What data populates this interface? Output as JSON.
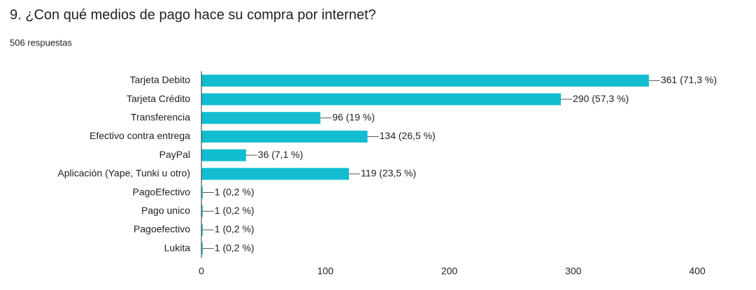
{
  "chart_data": {
    "type": "hbar",
    "title": "9. ¿Con qué medios de pago hace su compra por internet?",
    "subtitle": "506 respuestas",
    "categories": [
      "Tarjeta Debito",
      "Tarjeta Crédito",
      "Transferencia",
      "Efectivo contra entrega",
      "PayPal",
      "Aplicación (Yape, Tunki u otro)",
      "PagoEfectivo",
      "Pago unico",
      "Pagoefectivo",
      "Lukita"
    ],
    "values": [
      361,
      290,
      96,
      134,
      36,
      119,
      1,
      1,
      1,
      1
    ],
    "value_labels": [
      "361 (71,3 %)",
      "290 (57,3 %)",
      "96 (19 %)",
      "134 (26,5 %)",
      "36 (7,1 %)",
      "119 (23,5 %)",
      "1 (0,2 %)",
      "1 (0,2 %)",
      "1 (0,2 %)",
      "1 (0,2 %)"
    ],
    "color": "#12bdd2",
    "xlim": [
      0,
      400
    ],
    "xticks": [
      0,
      100,
      200,
      300,
      400
    ],
    "grid": false
  }
}
